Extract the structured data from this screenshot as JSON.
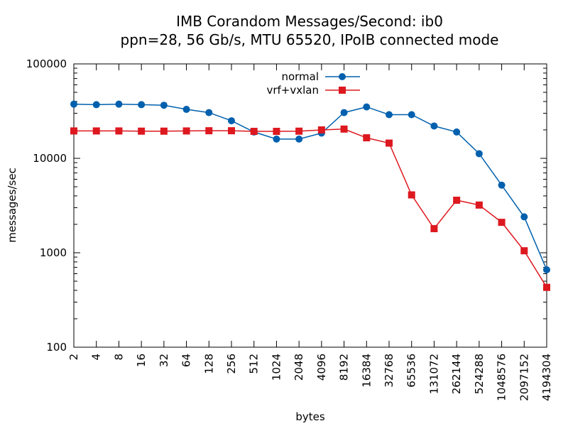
{
  "chart_data": {
    "type": "line",
    "title": "IMB Corandom Messages/Second: ib0",
    "subtitle": "ppn=28, 56 Gb/s, MTU 65520, IPoIB connected mode",
    "xlabel": "bytes",
    "ylabel": "messages/sec",
    "xscale": "log2",
    "yscale": "log10",
    "ylim": [
      100,
      100000
    ],
    "grid": false,
    "legend_position": "top-center",
    "x": [
      2,
      4,
      8,
      16,
      32,
      64,
      128,
      256,
      512,
      1024,
      2048,
      4096,
      8192,
      16384,
      32768,
      65536,
      131072,
      262144,
      524288,
      1048576,
      2097152,
      4194304
    ],
    "x_tick_labels": [
      "2",
      "4",
      "8",
      "16",
      "32",
      "64",
      "128",
      "256",
      "512",
      "1024",
      "2048",
      "4096",
      "8192",
      "16384",
      "32768",
      "65536",
      "131072",
      "262144",
      "524288",
      "1048576",
      "2097152",
      "4194304"
    ],
    "y_tick_labels": [
      "100",
      "1000",
      "10000",
      "100000"
    ],
    "y_ticks": [
      100,
      1000,
      10000,
      100000
    ],
    "series": [
      {
        "name": "normal",
        "color": "#0060ad",
        "marker": "circle",
        "values": [
          37500,
          37000,
          37500,
          37000,
          36500,
          33000,
          30500,
          25000,
          19000,
          16000,
          16000,
          18500,
          30500,
          35000,
          29000,
          29000,
          22000,
          19000,
          11200,
          5200,
          2400,
          660
        ]
      },
      {
        "name": "vrf+vxlan",
        "color": "#dd181f",
        "marker": "square",
        "values": [
          19500,
          19500,
          19500,
          19400,
          19400,
          19500,
          19600,
          19600,
          19300,
          19300,
          19400,
          20000,
          20400,
          16500,
          14500,
          4100,
          1800,
          3600,
          3200,
          2100,
          1050,
          430
        ]
      }
    ]
  }
}
